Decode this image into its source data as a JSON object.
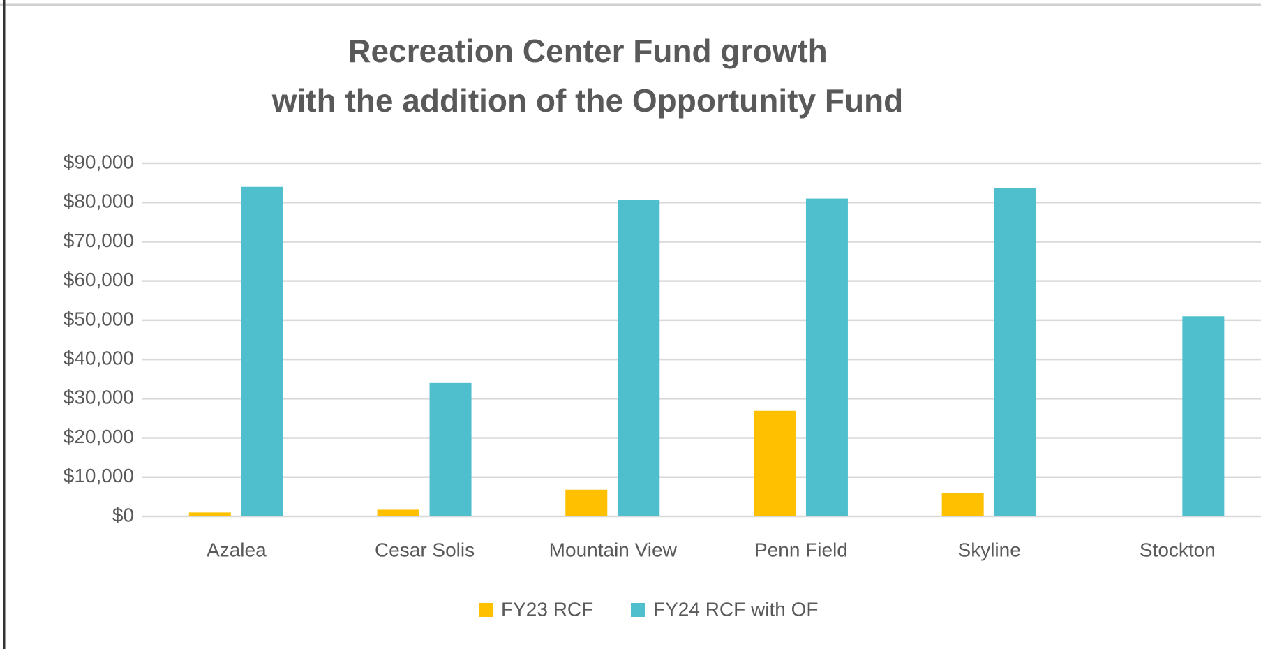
{
  "chart_data": {
    "type": "bar",
    "title": [
      "Recreation Center Fund growth",
      "with the addition of the Opportunity Fund"
    ],
    "categories": [
      "Azalea",
      "Cesar Solis",
      "Mountain View",
      "Penn Field",
      "Skyline",
      "Stockton"
    ],
    "series": [
      {
        "name": "FY23 RCF",
        "color": "#ffc000",
        "values": [
          1000,
          1700,
          6800,
          26900,
          5900,
          0
        ]
      },
      {
        "name": "FY24 RCF with OF",
        "color": "#4fbfce",
        "values": [
          84000,
          34000,
          80600,
          81000,
          83600,
          51000
        ]
      }
    ],
    "ylim": [
      0,
      90000
    ],
    "yticks": [
      {
        "value": 0,
        "label": "$0"
      },
      {
        "value": 10000,
        "label": "$10,000"
      },
      {
        "value": 20000,
        "label": "$20,000"
      },
      {
        "value": 30000,
        "label": "$30,000"
      },
      {
        "value": 40000,
        "label": "$40,000"
      },
      {
        "value": 50000,
        "label": "$50,000"
      },
      {
        "value": 60000,
        "label": "$60,000"
      },
      {
        "value": 70000,
        "label": "$70,000"
      },
      {
        "value": 80000,
        "label": "$80,000"
      },
      {
        "value": 90000,
        "label": "$90,000"
      }
    ],
    "grid": true,
    "legend": "bottom"
  }
}
